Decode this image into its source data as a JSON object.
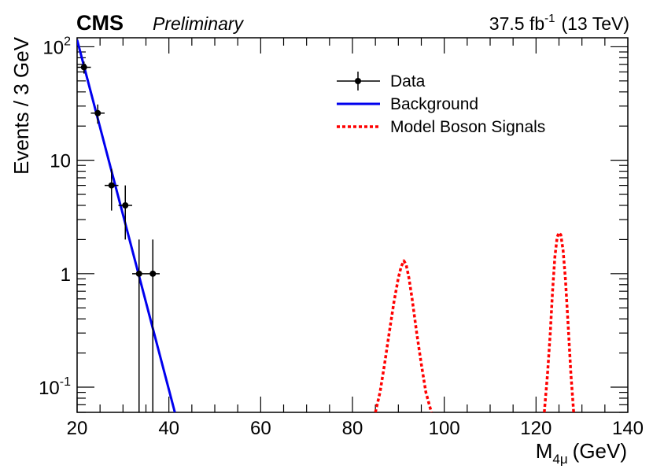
{
  "header": {
    "experiment": "CMS",
    "status": "Preliminary",
    "luminosity": "37.5 fb",
    "luminosity_exponent": "-1",
    "energy": "(13 TeV)"
  },
  "chart_data": {
    "type": "line",
    "title": "",
    "xlabel": "M",
    "xlabel_subscript": "4μ",
    "xlabel_unit": "(GeV)",
    "ylabel": "Events / 3 GeV",
    "xlim": [
      20,
      140
    ],
    "ylim": [
      0.06,
      120
    ],
    "yscale": "log",
    "x_ticks": [
      20,
      40,
      60,
      80,
      100,
      120,
      140
    ],
    "x_tick_labels": [
      "20",
      "40",
      "60",
      "80",
      "100",
      "120",
      "140"
    ],
    "y_ticks": [
      0.1,
      1,
      10,
      100
    ],
    "y_tick_labels": [
      {
        "base": "10",
        "exp": "-1"
      },
      {
        "base": "1",
        "exp": ""
      },
      {
        "base": "10",
        "exp": ""
      },
      {
        "base": "10",
        "exp": "2"
      }
    ],
    "legend": {
      "position": "top-right",
      "entries": [
        {
          "label": "Data",
          "style": "marker",
          "color": "#000000"
        },
        {
          "label": "Background",
          "style": "solid",
          "color": "#0000ee"
        },
        {
          "label": "Model Boson Signals",
          "style": "dotted",
          "color": "#ff0000"
        }
      ]
    },
    "series": [
      {
        "name": "Data",
        "kind": "points",
        "color": "#000000",
        "x": [
          21.5,
          24.5,
          27.5,
          30.5,
          33.5,
          36.5
        ],
        "y": [
          66,
          26,
          6,
          4,
          1,
          1
        ],
        "y_err_low": [
          8,
          5,
          2.4,
          2,
          1,
          1
        ],
        "y_err_high": [
          8,
          5,
          2.4,
          2,
          1,
          1
        ],
        "x_err": 1.5
      },
      {
        "name": "Background",
        "kind": "line",
        "color": "#0000ee",
        "x": [
          20,
          41.3
        ],
        "y": [
          115,
          0.06
        ]
      },
      {
        "name": "Model Boson Signals",
        "kind": "dotted-line",
        "color": "#ff0000",
        "segments": [
          {
            "x": [
              85.0,
              86.0,
              87.0,
              88.0,
              89.0,
              90.0,
              90.6,
              91.2,
              91.7,
              92.3,
              93.0,
              94.0,
              95.0,
              96.0,
              97.2
            ],
            "y": [
              0.06,
              0.09,
              0.16,
              0.3,
              0.55,
              0.92,
              1.15,
              1.3,
              1.2,
              0.92,
              0.6,
              0.3,
              0.16,
              0.09,
              0.06
            ]
          },
          {
            "x": [
              121.8,
              122.5,
              123.1,
              123.6,
              124.1,
              124.6,
              125.0,
              125.4,
              125.9,
              126.4,
              127.0,
              127.6,
              128.2
            ],
            "y": [
              0.06,
              0.13,
              0.3,
              0.7,
              1.4,
              2.1,
              2.3,
              2.2,
              1.6,
              0.9,
              0.35,
              0.13,
              0.06
            ]
          }
        ]
      }
    ]
  }
}
